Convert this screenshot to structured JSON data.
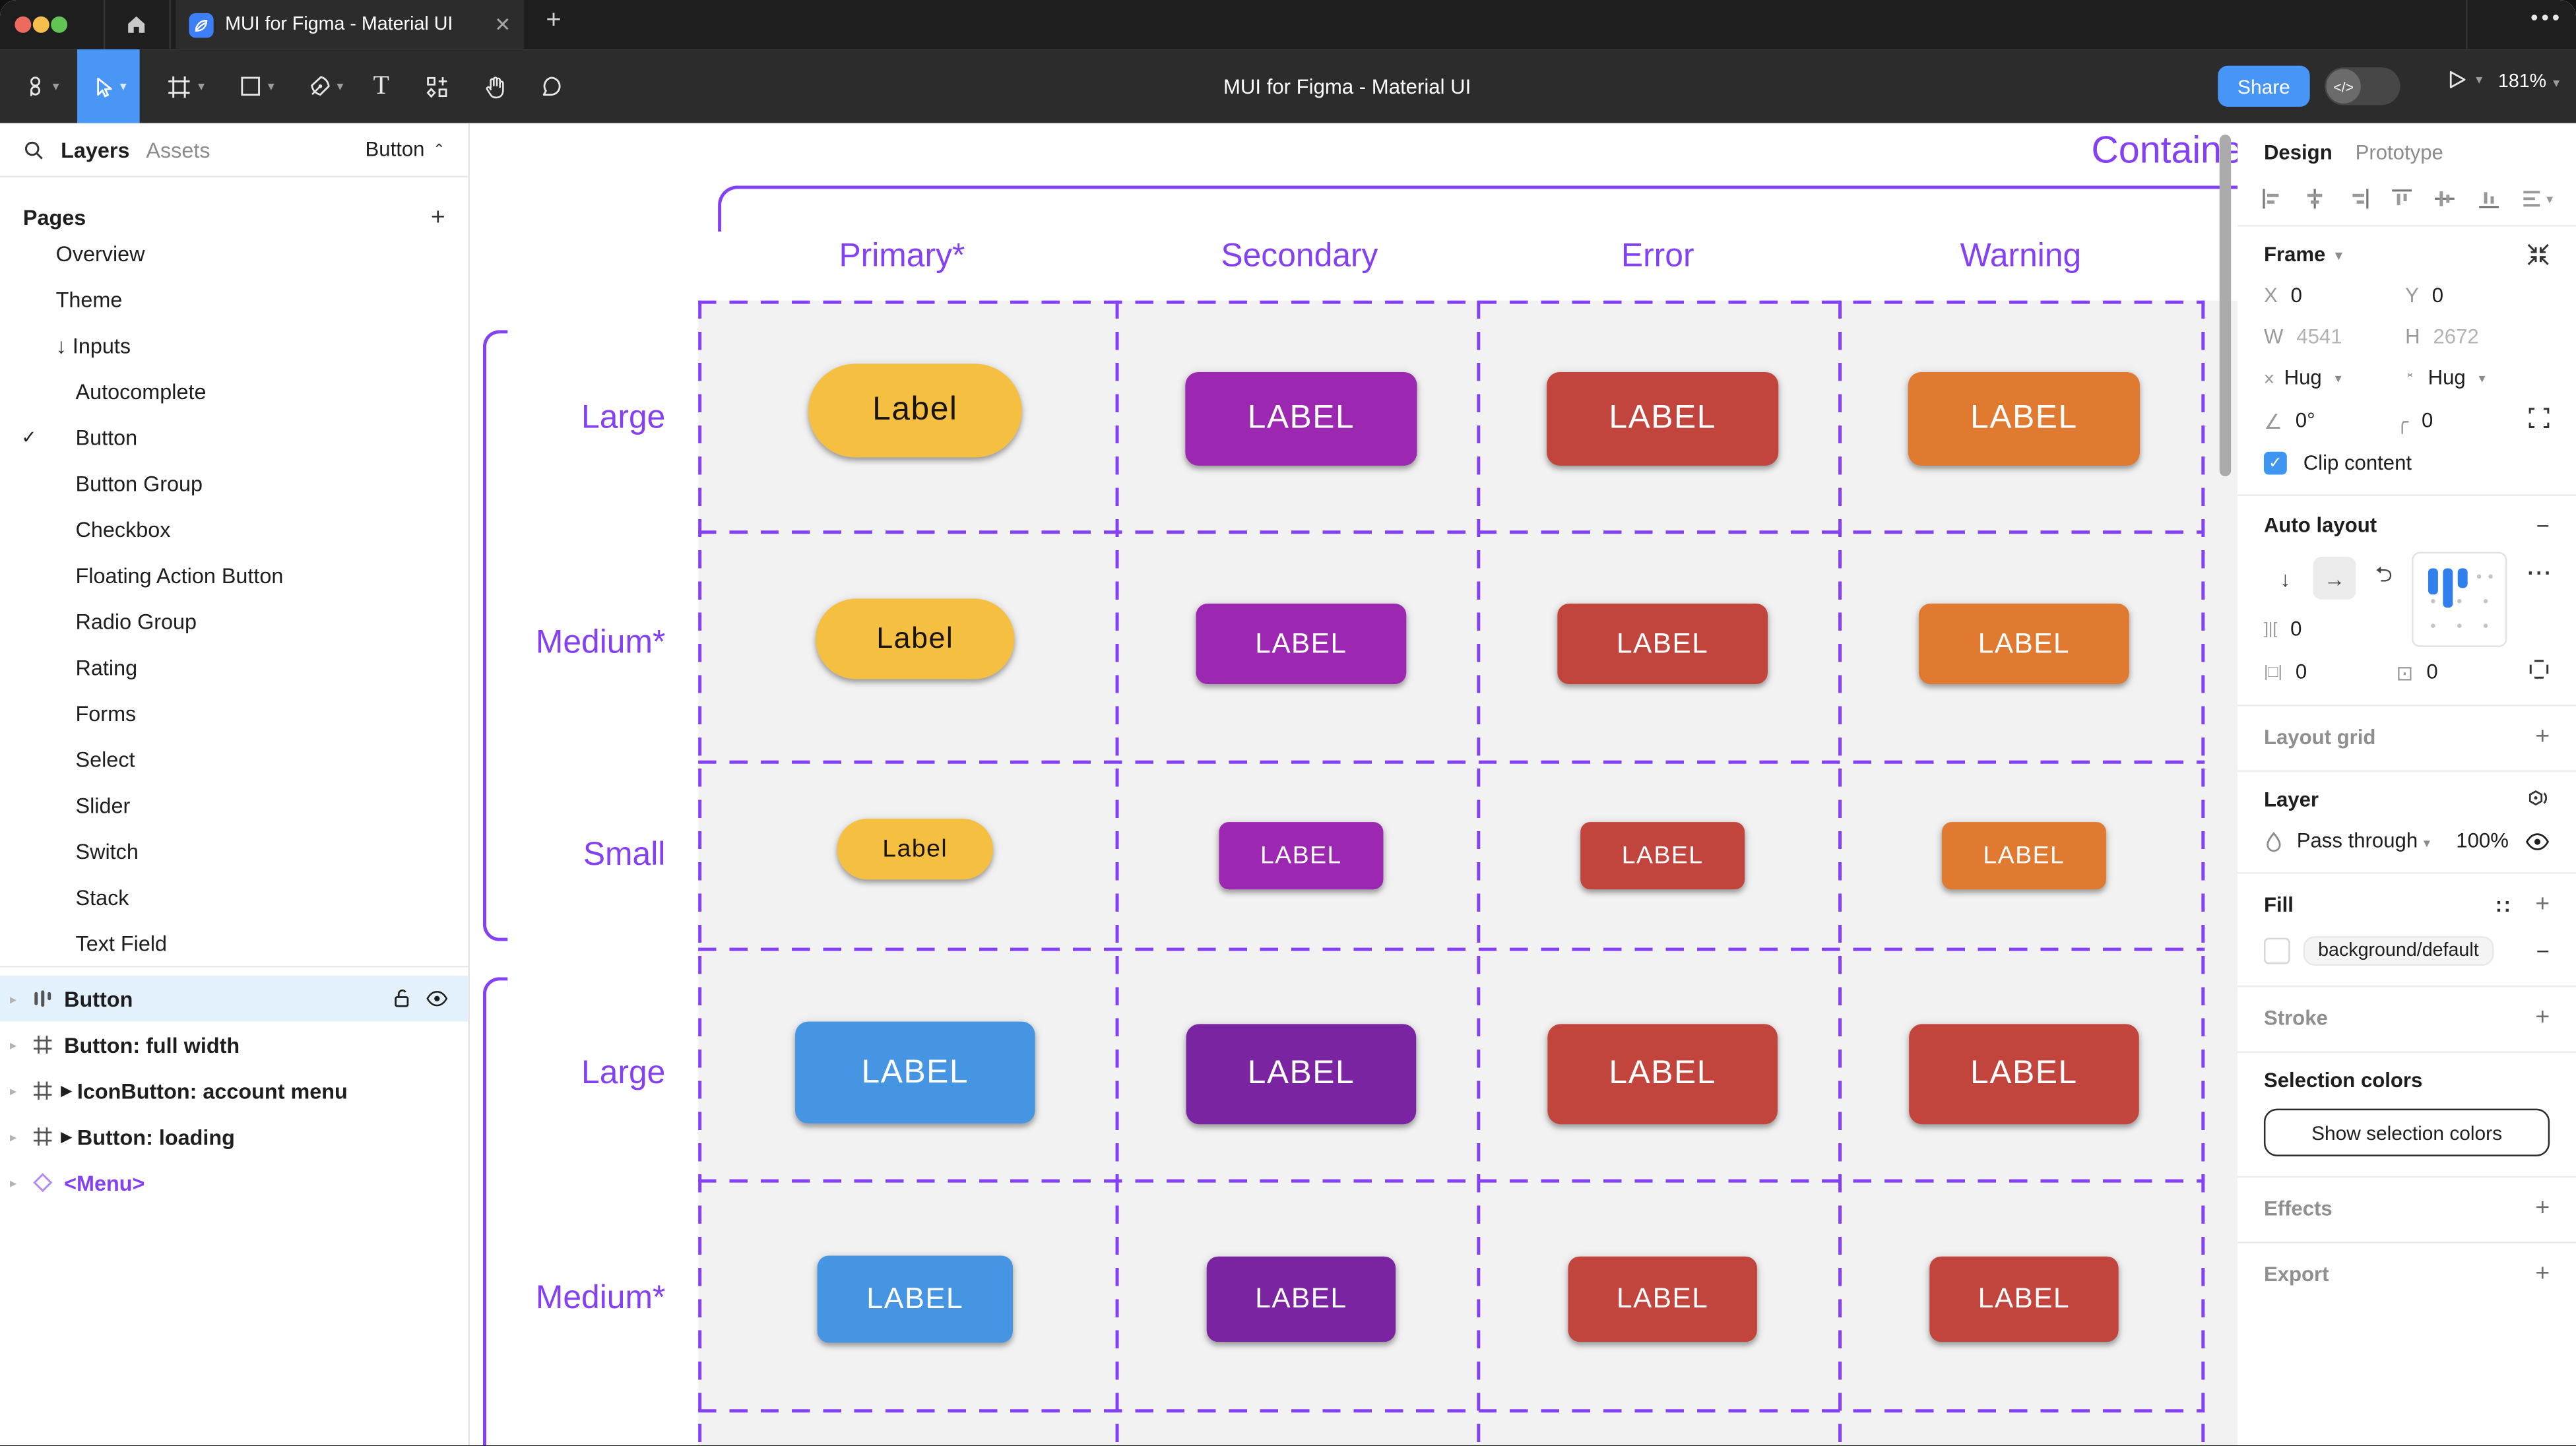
{
  "window": {
    "tab_title": "MUI for Figma - Material UI",
    "tab_close": "✕",
    "tab_new": "+",
    "tab_more": "•••"
  },
  "toolbar": {
    "doc_title": "MUI for Figma - Material UI",
    "share_label": "Share",
    "dev_toggle_glyph": "</>",
    "zoom_level": "181%"
  },
  "left_panel": {
    "tabs": {
      "layers": "Layers",
      "assets": "Assets"
    },
    "page_selector": "Button",
    "pages_header": "Pages",
    "pages": [
      {
        "label": "Overview",
        "indent": 1
      },
      {
        "label": "Theme",
        "indent": 1
      },
      {
        "label": "Inputs",
        "indent": 1,
        "prefix": "↓"
      },
      {
        "label": "Autocomplete",
        "indent": 2
      },
      {
        "label": "Button",
        "indent": 2,
        "checked": true
      },
      {
        "label": "Button Group",
        "indent": 2
      },
      {
        "label": "Checkbox",
        "indent": 2
      },
      {
        "label": "Floating Action Button",
        "indent": 2
      },
      {
        "label": "Radio Group",
        "indent": 2
      },
      {
        "label": "Rating",
        "indent": 2
      },
      {
        "label": "Forms",
        "indent": 2
      },
      {
        "label": "Select",
        "indent": 2
      },
      {
        "label": "Slider",
        "indent": 2
      },
      {
        "label": "Switch",
        "indent": 2
      },
      {
        "label": "Stack",
        "indent": 2
      },
      {
        "label": "Text Field",
        "indent": 2
      }
    ],
    "layers": [
      {
        "label": "Button",
        "icon": "auto-layout",
        "selected": true
      },
      {
        "label": "Button: full width",
        "icon": "frame"
      },
      {
        "label": "IconButton: account menu",
        "icon": "frame",
        "instance": true
      },
      {
        "label": "Button: loading",
        "icon": "frame",
        "instance": true
      },
      {
        "label": "<Menu>",
        "icon": "component",
        "purple": true
      }
    ]
  },
  "canvas": {
    "frame_title": "Contained",
    "accent_purple": "#8440f3",
    "columns": [
      "Primary*",
      "Secondary",
      "Error",
      "Warning"
    ],
    "rows": [
      "Large",
      "Medium*",
      "Small",
      "Large",
      "Medium*"
    ],
    "button_rows": [
      {
        "cells": [
          {
            "label": "Label",
            "bg": "#f5c042",
            "fg": "#1a1408",
            "pill": true
          },
          {
            "label": "LABEL",
            "bg": "#9c27b0"
          },
          {
            "label": "LABEL",
            "bg": "#c2453d"
          },
          {
            "label": "LABEL",
            "bg": "#e07a30"
          }
        ]
      },
      {
        "cells": [
          {
            "label": "Label",
            "bg": "#f5c042",
            "fg": "#1a1408",
            "pill": true
          },
          {
            "label": "LABEL",
            "bg": "#9c27b0"
          },
          {
            "label": "LABEL",
            "bg": "#c2453d"
          },
          {
            "label": "LABEL",
            "bg": "#e07a30"
          }
        ]
      },
      {
        "cells": [
          {
            "label": "Label",
            "bg": "#f5c042",
            "fg": "#1a1408",
            "pill": true
          },
          {
            "label": "LABEL",
            "bg": "#9c27b0"
          },
          {
            "label": "LABEL",
            "bg": "#c2453d"
          },
          {
            "label": "LABEL",
            "bg": "#e07a30"
          }
        ]
      },
      {
        "cells": [
          {
            "label": "LABEL",
            "bg": "#4695e2"
          },
          {
            "label": "LABEL",
            "bg": "#7b24a2"
          },
          {
            "label": "LABEL",
            "bg": "#c2453d"
          },
          {
            "label": "LABEL",
            "bg": "#c2453d"
          }
        ]
      },
      {
        "cells": [
          {
            "label": "LABEL",
            "bg": "#4695e2"
          },
          {
            "label": "LABEL",
            "bg": "#7b24a2"
          },
          {
            "label": "LABEL",
            "bg": "#c2453d"
          },
          {
            "label": "LABEL",
            "bg": "#c2453d"
          }
        ]
      }
    ]
  },
  "right_panel": {
    "tabs": {
      "design": "Design",
      "prototype": "Prototype"
    },
    "frame": {
      "header": "Frame",
      "x_label": "X",
      "x": "0",
      "y_label": "Y",
      "y": "0",
      "w_label": "W",
      "w": "4541",
      "h_label": "H",
      "h": "2672",
      "h_resize": "Hug",
      "v_resize": "Hug",
      "rotation": "0°",
      "radius": "0",
      "clip_label": "Clip content"
    },
    "auto_layout": {
      "header": "Auto layout",
      "gap": "0",
      "pad_h": "0",
      "pad_v": "0"
    },
    "layout_grid": {
      "header": "Layout grid"
    },
    "layer": {
      "header": "Layer",
      "blend": "Pass through",
      "opacity": "100%"
    },
    "fill": {
      "header": "Fill",
      "style_name": "background/default"
    },
    "stroke": {
      "header": "Stroke"
    },
    "selection_colors": {
      "header": "Selection colors",
      "button": "Show selection colors"
    },
    "effects": {
      "header": "Effects"
    },
    "export": {
      "header": "Export"
    }
  }
}
